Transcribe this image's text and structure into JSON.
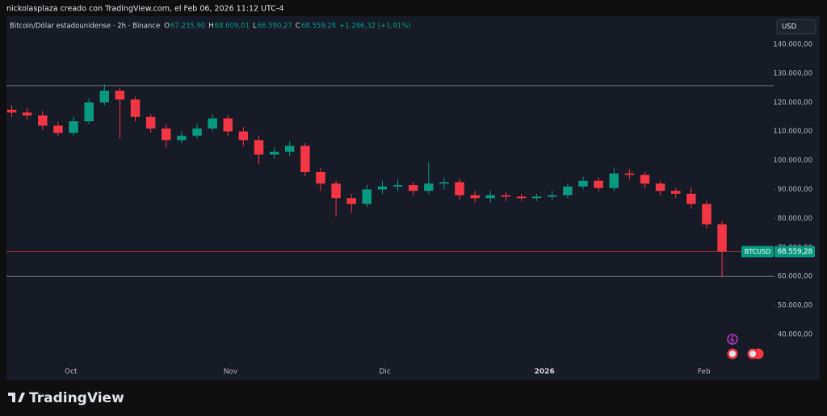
{
  "header": {
    "caption": "nickolasplaza creado con TradingView.com, el Feb 06, 2026 11:12 UTC-4"
  },
  "footer": {
    "logo_text": "TradingView"
  },
  "chart_data": {
    "type": "candlestick",
    "title": "Bitcoin/Dólar estadounidense · 2h · Binance",
    "legend_ohlc": [
      {
        "label": "O",
        "value": "67.235,90"
      },
      {
        "label": "H",
        "value": "68.609,01"
      },
      {
        "label": "L",
        "value": "66.590,27"
      },
      {
        "label": "C",
        "value": "68.559,28"
      }
    ],
    "change": "+1.286,32 (+1,91%)",
    "currency": "USD",
    "up_color": "#089981",
    "down_color": "#f23645",
    "categories": [
      null,
      null,
      null,
      null,
      null,
      null,
      null,
      null,
      null,
      null,
      null,
      null,
      null,
      null,
      null,
      null,
      null,
      null,
      null,
      null,
      null,
      null,
      null,
      null,
      null,
      null,
      null,
      null,
      null,
      null,
      null,
      null,
      null,
      null,
      null,
      null,
      null,
      null,
      null,
      null,
      null,
      null,
      null,
      null,
      null,
      null,
      null
    ],
    "open": [
      117500,
      116500,
      115500,
      112000,
      109500,
      113500,
      120000,
      124000,
      121000,
      115000,
      111000,
      107000,
      108500,
      111000,
      114500,
      110000,
      107000,
      102000,
      103000,
      105000,
      96000,
      92000,
      87000,
      85000,
      90000,
      91000,
      91500,
      89500,
      92000,
      92500,
      88000,
      87000,
      88000,
      87500,
      87000,
      87500,
      88000,
      91000,
      93000,
      90500,
      95500,
      95000,
      92000,
      89500,
      88500,
      85000,
      78000
    ],
    "high": [
      119000,
      118000,
      117000,
      113500,
      115000,
      121500,
      126200,
      125000,
      122000,
      116000,
      112500,
      110000,
      112500,
      116000,
      115500,
      111500,
      108500,
      104500,
      106500,
      106000,
      97500,
      93000,
      88500,
      91500,
      93000,
      93500,
      92500,
      99500,
      94000,
      93500,
      89500,
      89500,
      89000,
      88500,
      88500,
      89500,
      92000,
      94500,
      94000,
      97500,
      97000,
      96000,
      93000,
      90500,
      90500,
      86000,
      79000
    ],
    "low": [
      115000,
      114000,
      110500,
      108500,
      108500,
      112500,
      119000,
      107500,
      113500,
      109500,
      104500,
      106000,
      107500,
      110000,
      108500,
      105000,
      98800,
      100500,
      101500,
      94500,
      89500,
      80600,
      82000,
      84000,
      88500,
      89500,
      88000,
      88500,
      90000,
      86500,
      85500,
      85500,
      86000,
      86000,
      86000,
      86500,
      87000,
      90000,
      89500,
      89500,
      93500,
      90500,
      88000,
      87000,
      83500,
      76500,
      60070
    ],
    "close": [
      116500,
      115500,
      112000,
      109500,
      113500,
      120000,
      124000,
      121000,
      115000,
      111000,
      107000,
      108500,
      111000,
      114500,
      110000,
      107000,
      102000,
      103000,
      105000,
      96000,
      92000,
      87000,
      85000,
      90000,
      91000,
      91500,
      89500,
      92000,
      92500,
      88000,
      87000,
      88000,
      87500,
      87000,
      87500,
      88000,
      91000,
      93000,
      90500,
      95500,
      95000,
      92000,
      89500,
      88500,
      85000,
      78000,
      68559.28
    ],
    "xticks": [
      {
        "value": 3.83,
        "label": "Oct"
      },
      {
        "value": 14.17,
        "label": "Nov"
      },
      {
        "value": 24.17,
        "label": "Dic"
      },
      {
        "value": 34.5,
        "label": "2026"
      },
      {
        "value": 44.83,
        "label": "Feb"
      }
    ],
    "ylim": [
      24400,
      149750
    ],
    "yticks": [
      {
        "value": 40000,
        "label": "40.000,00"
      },
      {
        "value": 50000,
        "label": "50.000,00"
      },
      {
        "value": 60000,
        "label": "60.000,00"
      },
      {
        "value": 70000,
        "label": "70.000,00"
      },
      {
        "value": 80000,
        "label": "80.000,00"
      },
      {
        "value": 90000,
        "label": "90.000,00"
      },
      {
        "value": 100000,
        "label": "100.000,00"
      },
      {
        "value": 110000,
        "label": "110.000,00"
      },
      {
        "value": 120000,
        "label": "120.000,00"
      },
      {
        "value": 130000,
        "label": "130.000,00"
      },
      {
        "value": 140000,
        "label": "140.000,00"
      }
    ],
    "hlines": [
      125800,
      60000
    ],
    "last_price": {
      "name": "BTCUSD",
      "value": 68559.28,
      "label": "68.559,28"
    }
  }
}
